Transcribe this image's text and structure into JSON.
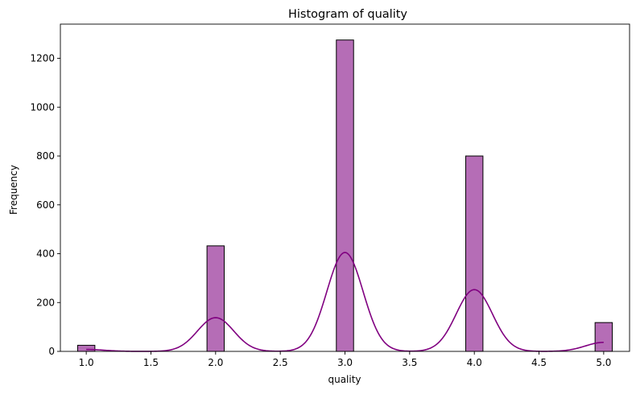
{
  "chart_data": {
    "type": "bar",
    "title": "Histogram of quality",
    "xlabel": "quality",
    "ylabel": "Frequency",
    "xlim": [
      0.8,
      5.2
    ],
    "ylim": [
      0,
      1340
    ],
    "xticks": [
      "1.0",
      "1.5",
      "2.0",
      "2.5",
      "3.0",
      "3.5",
      "4.0",
      "4.5",
      "5.0"
    ],
    "yticks": [
      "0",
      "200",
      "400",
      "600",
      "800",
      "1000",
      "1200"
    ],
    "bin_width": 0.1333,
    "bars": [
      {
        "x": 1.0,
        "value": 25
      },
      {
        "x": 2.0,
        "value": 432
      },
      {
        "x": 3.0,
        "value": 1275
      },
      {
        "x": 4.0,
        "value": 800
      },
      {
        "x": 5.0,
        "value": 118
      }
    ],
    "kde": [
      {
        "mean": 1.0,
        "peak": 8
      },
      {
        "mean": 2.0,
        "peak": 138
      },
      {
        "mean": 3.0,
        "peak": 405
      },
      {
        "mean": 4.0,
        "peak": 253
      },
      {
        "mean": 5.0,
        "peak": 37
      }
    ],
    "kde_sigma": 0.14,
    "colors": {
      "bar_fill": "#a349a4",
      "bar_alpha": 0.8,
      "bar_edge": "#000000",
      "kde_line": "#800080"
    },
    "grid": false
  }
}
